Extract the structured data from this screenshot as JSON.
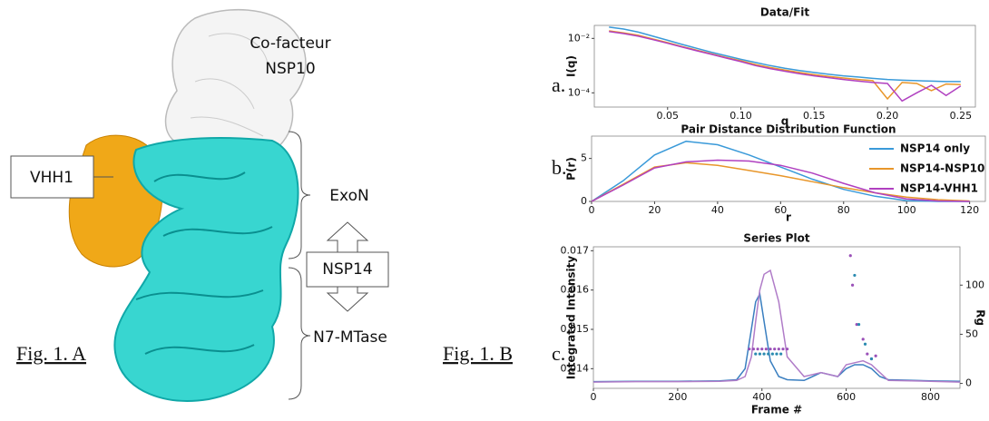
{
  "structure": {
    "cofactor_line1": "Co-facteur",
    "cofactor_line2": "NSP10",
    "vhh_label": "VHH1",
    "exon_label": "ExoN",
    "nsp14_label": "NSP14",
    "mtase_label": "N7-MTase",
    "fig_a": "Fig. 1. A",
    "fig_b": "Fig. 1. B"
  },
  "chart_data": [
    {
      "type": "line",
      "panel": "a.",
      "title": "Data/Fit",
      "xlabel": "q",
      "ylabel": "I(q)",
      "yscale": "log",
      "xlim": [
        0,
        0.26
      ],
      "xticks": [
        0.05,
        {
          "value": 0.1,
          "label": "0.10"
        },
        0.15,
        {
          "value": 0.2,
          "label": "0.20"
        },
        0.25
      ],
      "ylim": [
        3e-05,
        0.03
      ],
      "yticks": [
        {
          "value": 0.01,
          "label": "10⁻²"
        },
        {
          "value": 0.0001,
          "label": "10⁻⁴"
        }
      ],
      "x": [
        0.01,
        0.02,
        0.03,
        0.04,
        0.05,
        0.06,
        0.07,
        0.08,
        0.09,
        0.1,
        0.11,
        0.12,
        0.13,
        0.14,
        0.15,
        0.16,
        0.17,
        0.18,
        0.19,
        0.2,
        0.21,
        0.22,
        0.23,
        0.24,
        0.25
      ],
      "series": [
        {
          "color": "#3a9ad9",
          "values": [
            0.026,
            0.022,
            0.017,
            0.012,
            0.0085,
            0.006,
            0.0043,
            0.0031,
            0.0023,
            0.0017,
            0.0013,
            0.001,
            0.0008,
            0.00066,
            0.00056,
            0.00048,
            0.00042,
            0.00038,
            0.00034,
            0.00031,
            0.00029,
            0.00028,
            0.00027,
            0.00026,
            0.00026
          ]
        },
        {
          "color": "#e8962a",
          "values": [
            0.019,
            0.016,
            0.013,
            0.0095,
            0.007,
            0.005,
            0.0037,
            0.0027,
            0.002,
            0.0015,
            0.0011,
            0.00085,
            0.00068,
            0.00056,
            0.00047,
            0.0004,
            0.00035,
            0.00031,
            0.00028,
            6e-05,
            0.00024,
            0.00022,
            0.00012,
            0.00021,
            0.0002
          ]
        },
        {
          "color": "#b040c0",
          "values": [
            0.018,
            0.015,
            0.012,
            0.009,
            0.0066,
            0.0048,
            0.0035,
            0.0026,
            0.0019,
            0.0014,
            0.001,
            0.00078,
            0.00062,
            0.0005,
            0.00042,
            0.00036,
            0.00031,
            0.00027,
            0.00024,
            0.00022,
            5e-05,
            0.0001,
            0.00019,
            8e-05,
            0.00018
          ]
        }
      ]
    },
    {
      "type": "line",
      "panel": "b.",
      "title": "Pair Distance Distribution Function",
      "xlabel": "r",
      "ylabel": "P(r)",
      "legend": "upper right",
      "xlim": [
        0,
        125
      ],
      "xticks": [
        0,
        20,
        40,
        60,
        80,
        100,
        120
      ],
      "ylim": [
        0,
        7.6
      ],
      "yticks": [
        0,
        5
      ],
      "x": [
        0,
        10,
        20,
        30,
        40,
        50,
        60,
        70,
        80,
        90,
        100,
        110,
        120
      ],
      "series": [
        {
          "name": "NSP14 only",
          "color": "#3a9ad9",
          "values": [
            0,
            2.4,
            5.4,
            7.0,
            6.6,
            5.4,
            4.0,
            2.6,
            1.4,
            0.6,
            0.1,
            0,
            0
          ]
        },
        {
          "name": "NSP14-NSP10",
          "color": "#e8962a",
          "values": [
            0,
            2.0,
            4.0,
            4.5,
            4.2,
            3.6,
            3.0,
            2.3,
            1.6,
            1.0,
            0.5,
            0.2,
            0.05
          ]
        },
        {
          "name": "NSP14-VHH1",
          "color": "#b040c0",
          "values": [
            0,
            1.9,
            3.9,
            4.6,
            4.8,
            4.7,
            4.2,
            3.3,
            2.1,
            1.0,
            0.3,
            0.05,
            0
          ]
        }
      ]
    },
    {
      "type": "line",
      "panel": "c.",
      "title": "Series Plot",
      "xlabel": "Frame #",
      "ylabel": "Integrated Intensity",
      "y2label": "Rg",
      "xlim": [
        0,
        870
      ],
      "xticks": [
        0,
        200,
        400,
        600,
        800
      ],
      "ylim": [
        0.0135,
        0.0171
      ],
      "yticks": [
        0.014,
        0.015,
        0.016,
        0.017
      ],
      "y2lim": [
        -5,
        139
      ],
      "y2ticks": [
        0,
        50,
        100
      ],
      "series": [
        {
          "color": "#3a7fc0",
          "x": [
            0,
            100,
            200,
            300,
            340,
            360,
            375,
            385,
            395,
            405,
            420,
            440,
            460,
            500,
            540,
            580,
            600,
            620,
            640,
            660,
            680,
            700,
            800,
            870
          ],
          "values": [
            0.01367,
            0.01368,
            0.01368,
            0.01369,
            0.01372,
            0.014,
            0.015,
            0.0157,
            0.0159,
            0.0152,
            0.0142,
            0.0138,
            0.01372,
            0.0137,
            0.0139,
            0.0138,
            0.014,
            0.0141,
            0.0141,
            0.014,
            0.0138,
            0.01372,
            0.01369,
            0.01368
          ]
        },
        {
          "color": "#b07cc8",
          "x": [
            0,
            100,
            200,
            300,
            340,
            360,
            375,
            385,
            395,
            405,
            420,
            440,
            460,
            500,
            540,
            580,
            600,
            620,
            640,
            660,
            680,
            700,
            800,
            870
          ],
          "values": [
            0.01366,
            0.01367,
            0.01367,
            0.01368,
            0.0137,
            0.0138,
            0.0143,
            0.0152,
            0.016,
            0.0164,
            0.0165,
            0.0157,
            0.0143,
            0.0138,
            0.0139,
            0.0138,
            0.0141,
            0.01415,
            0.0142,
            0.0141,
            0.0139,
            0.0137,
            0.01368,
            0.01366
          ]
        },
        {
          "type": "scatter",
          "axis": "y2",
          "color": "#9a50b8",
          "x": [
            370,
            380,
            390,
            400,
            410,
            420,
            430,
            440,
            450,
            460,
            610,
            615,
            625,
            640,
            650,
            660,
            670
          ],
          "values": [
            35,
            35,
            35,
            35,
            35,
            35,
            35,
            35,
            35,
            35,
            130,
            100,
            60,
            45,
            30,
            25,
            28
          ]
        },
        {
          "type": "scatter",
          "axis": "y2",
          "color": "#2a8ab0",
          "x": [
            385,
            395,
            405,
            415,
            425,
            435,
            445,
            620,
            630,
            645,
            660
          ],
          "values": [
            30,
            30,
            30,
            30,
            30,
            30,
            30,
            110,
            60,
            40,
            25
          ]
        }
      ]
    }
  ]
}
